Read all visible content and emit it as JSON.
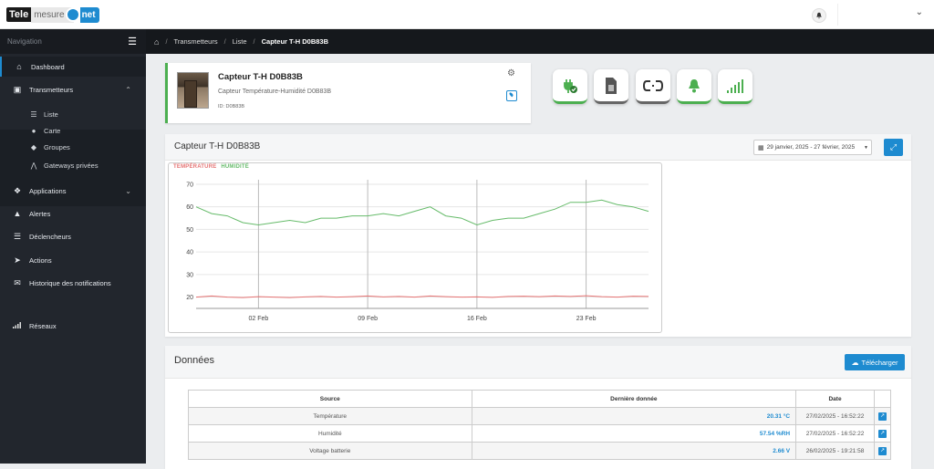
{
  "header": {
    "logo": {
      "part1": "Tele",
      "part2": "mesure",
      "part3": "net"
    },
    "notification_icon": "bell-icon",
    "user_dropdown_icon": "chevron-down-icon"
  },
  "sidebar": {
    "title": "Navigation",
    "items": [
      {
        "label": "Dashboard",
        "icon": "home-icon"
      },
      {
        "label": "Transmetteurs",
        "icon": "transmitter-icon"
      },
      {
        "label": "Applications",
        "icon": "cubes-icon"
      },
      {
        "label": "Alertes",
        "icon": "bell-icon"
      },
      {
        "label": "Déclencheurs",
        "icon": "sliders-icon"
      },
      {
        "label": "Actions",
        "icon": "rocket-icon"
      },
      {
        "label": "Historique des notifications",
        "icon": "envelope-icon"
      },
      {
        "label": "Réseaux",
        "icon": "signal-icon"
      }
    ],
    "subitems": [
      {
        "label": "Liste",
        "icon": "list-icon"
      },
      {
        "label": "Carte",
        "icon": "map-marker-icon"
      },
      {
        "label": "Groupes",
        "icon": "tags-icon"
      },
      {
        "label": "Gateways privées",
        "icon": "antenna-icon"
      }
    ]
  },
  "breadcrumb": {
    "items": [
      "Transmetteurs",
      "Liste"
    ],
    "current": "Capteur T-H D0B83B"
  },
  "sensor": {
    "name": "Capteur T-H D0B83B",
    "description": "Capteur Température-Humidité D0B83B",
    "id": "ID: D0B83B"
  },
  "status_buttons": [
    "plug-ok-icon",
    "sim-card-icon",
    "link-icon",
    "bell-icon",
    "signal-icon"
  ],
  "chart_panel": {
    "title": "Capteur T-H D0B83B",
    "date_range": "29 janvier, 2025 - 27 février, 2025"
  },
  "chart_data": {
    "type": "line",
    "x": [
      "2025-01-29",
      "2025-01-30",
      "2025-01-31",
      "2025-02-01",
      "2025-02-02",
      "2025-02-03",
      "2025-02-04",
      "2025-02-05",
      "2025-02-06",
      "2025-02-07",
      "2025-02-08",
      "2025-02-09",
      "2025-02-10",
      "2025-02-11",
      "2025-02-12",
      "2025-02-13",
      "2025-02-14",
      "2025-02-15",
      "2025-02-16",
      "2025-02-17",
      "2025-02-18",
      "2025-02-19",
      "2025-02-20",
      "2025-02-21",
      "2025-02-22",
      "2025-02-23",
      "2025-02-24",
      "2025-02-25",
      "2025-02-26",
      "2025-02-27"
    ],
    "series": [
      {
        "name": "TEMPÉRATURE",
        "color": "#e57373",
        "values": [
          20,
          20.5,
          20,
          19.8,
          20.2,
          20,
          19.8,
          20.1,
          20.3,
          20,
          20.2,
          20.5,
          20.1,
          20.3,
          20,
          20.5,
          20.2,
          20,
          20.1,
          19.9,
          20.3,
          20.4,
          20.2,
          20.5,
          20.3,
          20.6,
          20.2,
          20,
          20.4,
          20.3
        ]
      },
      {
        "name": "HUMIDITÉ",
        "color": "#66bb6a",
        "values": [
          60,
          57,
          56,
          53,
          52,
          53,
          54,
          53,
          55,
          55,
          56,
          56,
          57,
          56,
          58,
          60,
          56,
          55,
          52,
          54,
          55,
          55,
          57,
          59,
          62,
          62,
          63,
          61,
          60,
          58
        ]
      }
    ],
    "x_ticks": [
      "02 Feb",
      "09 Feb",
      "16 Feb",
      "23 Feb"
    ],
    "y_ticks": [
      20,
      30,
      40,
      50,
      60,
      70
    ],
    "ylim": [
      15,
      72
    ],
    "legend_position": "top-left",
    "grid": true
  },
  "data_panel": {
    "title": "Données",
    "download_label": "Télécharger",
    "columns": [
      "Source",
      "Dernière donnée",
      "Date"
    ],
    "rows": [
      {
        "source": "Température",
        "value": "20.31 °C",
        "date": "27/02/2025 - 16:52:22"
      },
      {
        "source": "Humidité",
        "value": "57.54 %RH",
        "date": "27/02/2025 - 16:52:22"
      },
      {
        "source": "Voltage batterie",
        "value": "2.66 V",
        "date": "26/02/2025 - 19:21:58"
      }
    ]
  }
}
